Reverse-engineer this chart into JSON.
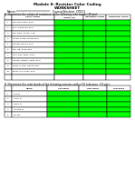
{
  "title1": "Module 8: Resistor Color Coding",
  "title2": "WORKSHEET",
  "label_name": "Name:",
  "label_course": "Course/Section: CPE11",
  "section_a_title": "A. Determine the values of resistance of the following color bands (40 pts):",
  "section_b_title": "B. Determine the color bands of the following resistors with a 5% tolerance. (15 pts):",
  "color_codes": [
    "red, blue, green, gold",
    "gray, violet, red, gold",
    "red, green, green, silver",
    "yellow, brown, yellow, gold",
    "orange, red, red, gold",
    "red, red, black, gold",
    "blue, blue, black, silver",
    "orange, orange, orange, gold",
    "violet, orange, orange, gold",
    "green, red, brown, gold",
    ""
  ],
  "b_values": [
    "100 Ω",
    "2200 Ω",
    "3300 Ω",
    "12,000 Ω",
    "56 kΩ"
  ],
  "green_color": "#00FF00",
  "background": "#ffffff"
}
